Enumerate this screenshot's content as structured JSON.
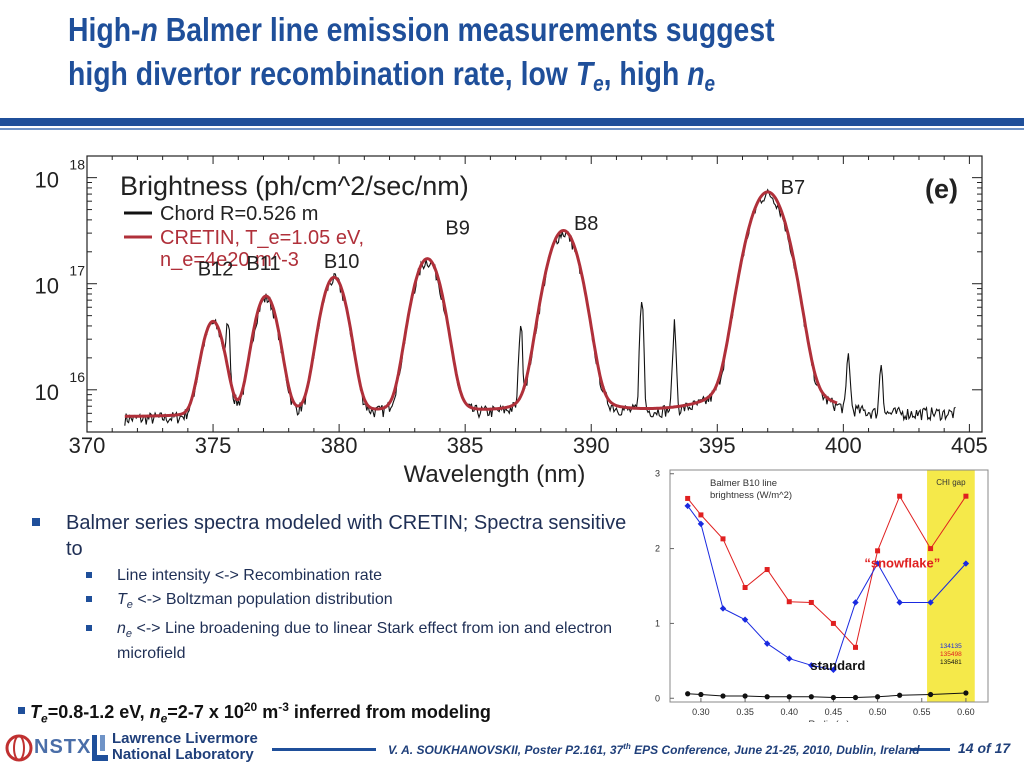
{
  "slide": {
    "title_line1_pre": "High-",
    "title_line1_n": "n",
    "title_line1_post": " Balmer line emission measurements suggest",
    "title_line2_pre": "high divertor recombination rate, low ",
    "title_line2_T": "T",
    "title_line2_e1": "e",
    "title_line2_mid": ", high ",
    "title_line2_n": "n",
    "title_line2_e2": "e"
  },
  "bullets": {
    "main": "Balmer series spectra modeled with CRETIN; Spectra sensitive to",
    "sub1": "Line intensity <-> Recombination rate",
    "sub2_sym": "T",
    "sub2_subscript": "e",
    "sub2_text": " <-> Boltzman population distribution",
    "sub3_sym": "n",
    "sub3_subscript": "e",
    "sub3_text": " <-> Line broadening due to linear Stark effect from ion and electron microfield",
    "result_T": "T",
    "result_Tsub": "e",
    "result_Tval": "=0.8-1.2 eV, ",
    "result_n": "n",
    "result_nsub": "e",
    "result_nval": "=2-7 x 10",
    "result_exp": "20",
    "result_unit": " m",
    "result_unitexp": "-3",
    "result_tail": " inferred from modeling"
  },
  "footer": {
    "nstx": "NSTX",
    "llnl_line1": "Lawrence Livermore",
    "llnl_line2": "National Laboratory",
    "cite_pre": "V. A. SOUKHANOVSKII, Poster P2.161, 37",
    "cite_sup": "th",
    "cite_post": " EPS Conference, June 21-25, 2010, Dublin, Ireland",
    "page": "14 of 17"
  },
  "colors": {
    "title": "#1f4f9a",
    "model": "#b0303a",
    "measured": "#111111",
    "gap": "#f5e94a",
    "snowflake": "#e02020",
    "std_blue": "#1a2ae0"
  },
  "chart_data": [
    {
      "type": "line",
      "title": "Brightness (ph/cm^2/sec/nm)",
      "panel_label": "(e)",
      "xlabel": "Wavelength (nm)",
      "ylabel": "",
      "x_ticks": [
        "370",
        "375",
        "380",
        "385",
        "390",
        "395",
        "400",
        "405"
      ],
      "xlim": [
        370,
        405.5
      ],
      "y_scale": "log",
      "y_ticks": [
        {
          "base": "10",
          "exp": "16"
        },
        {
          "base": "10",
          "exp": "17"
        },
        {
          "base": "10",
          "exp": "18"
        }
      ],
      "ylim": [
        4000000000000000.0,
        1.6e+18
      ],
      "legend": [
        {
          "name": "Chord R=0.526 m",
          "color": "#111111"
        },
        {
          "name": "CRETIN, T_e=1.05 eV,",
          "name2": "n_e=4e20 m^-3",
          "color": "#b0303a"
        }
      ],
      "line_labels": [
        {
          "text": "B12",
          "x": 375.1,
          "y": 1.2e+17
        },
        {
          "text": "B11",
          "x": 377.0,
          "y": 1.35e+17
        },
        {
          "text": "B10",
          "x": 380.1,
          "y": 1.4e+17
        },
        {
          "text": "B9",
          "x": 384.7,
          "y": 2.9e+17
        },
        {
          "text": "B8",
          "x": 389.8,
          "y": 3.2e+17
        },
        {
          "text": "B7",
          "x": 398.0,
          "y": 7e+17
        }
      ],
      "peaks": [
        {
          "x": 375.0,
          "height": 3.7e+16,
          "width": 0.45
        },
        {
          "x": 377.1,
          "height": 6.8e+16,
          "width": 0.48
        },
        {
          "x": 379.8,
          "height": 1.05e+17,
          "width": 0.52
        },
        {
          "x": 383.5,
          "height": 1.6e+17,
          "width": 0.58
        },
        {
          "x": 388.9,
          "height": 3e+17,
          "width": 0.65
        },
        {
          "x": 397.0,
          "height": 7e+17,
          "width": 0.75
        }
      ],
      "baseline": 5500000000000000.0,
      "start_x": 371.5,
      "measured_end_x": 404.5,
      "model_end_x": 399.8,
      "impurity_lines": [
        {
          "x": 375.6,
          "height": 3.1e+16
        },
        {
          "x": 387.2,
          "height": 3.4e+16
        },
        {
          "x": 392.0,
          "height": 7e+16
        },
        {
          "x": 393.3,
          "height": 3.4e+16
        },
        {
          "x": 400.2,
          "height": 1.5e+16
        },
        {
          "x": 401.5,
          "height": 1.2e+16
        }
      ]
    },
    {
      "type": "line",
      "title": "Balmer B10 line",
      "title2": "brightness (W/m^2)",
      "xlabel": "R_div (m)",
      "ylabel": "",
      "xlim": [
        0.265,
        0.625
      ],
      "ylim": [
        -0.05,
        3.05
      ],
      "x_ticks": [
        "0.30",
        "0.35",
        "0.40",
        "0.45",
        "0.50",
        "0.55",
        "0.60"
      ],
      "x_tick_values": [
        0.3,
        0.35,
        0.4,
        0.45,
        0.5,
        0.55,
        0.6
      ],
      "y_ticks": [
        "0",
        "1",
        "2",
        "3"
      ],
      "y_tick_values": [
        0,
        1,
        2,
        3
      ],
      "shaded_region": {
        "label": "CHI gap",
        "x": [
          0.556,
          0.61
        ]
      },
      "shot_numbers": [
        {
          "text": "134135",
          "color": "#1a2ae0"
        },
        {
          "text": "135498",
          "color": "#e02020"
        },
        {
          "text": "135481",
          "color": "#111111"
        }
      ],
      "annotations": [
        {
          "text": "“snowflake”",
          "color": "#e02020",
          "x": 0.528,
          "y": 1.75
        },
        {
          "text": "standard",
          "color": "#111111",
          "x": 0.455,
          "y": 0.38
        }
      ],
      "series": [
        {
          "name": "135498",
          "color": "#e02020",
          "marker": "square",
          "x": [
            0.285,
            0.3,
            0.325,
            0.35,
            0.375,
            0.4,
            0.425,
            0.45,
            0.475,
            0.5,
            0.525,
            0.56,
            0.6
          ],
          "values": [
            2.67,
            2.45,
            2.13,
            1.48,
            1.72,
            1.29,
            1.28,
            1.0,
            0.68,
            1.97,
            2.7,
            2.0,
            2.7
          ]
        },
        {
          "name": "134135",
          "color": "#1a2ae0",
          "marker": "diamond",
          "x": [
            0.285,
            0.3,
            0.325,
            0.35,
            0.375,
            0.4,
            0.425,
            0.45,
            0.475,
            0.5,
            0.525,
            0.56,
            0.6
          ],
          "values": [
            2.57,
            2.33,
            1.2,
            1.05,
            0.73,
            0.53,
            0.44,
            0.38,
            1.28,
            1.8,
            1.28,
            1.28,
            1.8
          ]
        },
        {
          "name": "135481",
          "color": "#111111",
          "marker": "circle",
          "x": [
            0.285,
            0.3,
            0.325,
            0.35,
            0.375,
            0.4,
            0.425,
            0.45,
            0.475,
            0.5,
            0.525,
            0.56,
            0.6
          ],
          "values": [
            0.06,
            0.05,
            0.03,
            0.03,
            0.02,
            0.02,
            0.02,
            0.01,
            0.01,
            0.02,
            0.04,
            0.05,
            0.07
          ]
        }
      ]
    }
  ]
}
